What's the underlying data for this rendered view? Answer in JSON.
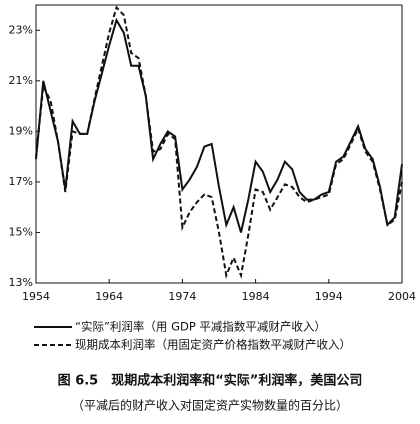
{
  "chart_data": {
    "type": "line",
    "caption": "（平减后的财产收入对固定资产实物数量的百分比）",
    "title": "图 6.5　现期成本利润率和“实际”利润率，美国公司",
    "x": [
      1954,
      1955,
      1956,
      1957,
      1958,
      1959,
      1960,
      1961,
      1962,
      1963,
      1964,
      1965,
      1966,
      1967,
      1968,
      1969,
      1970,
      1971,
      1972,
      1973,
      1974,
      1975,
      1976,
      1977,
      1978,
      1979,
      1980,
      1981,
      1982,
      1983,
      1984,
      1985,
      1986,
      1987,
      1988,
      1989,
      1990,
      1991,
      1992,
      1993,
      1994,
      1995,
      1996,
      1997,
      1998,
      1999,
      2000,
      2001,
      2002,
      2003,
      2004
    ],
    "series": [
      {
        "name": "“实际”利润率（用 GDP 平减指数平减财产收入）",
        "color": "#111111",
        "dash": "solid",
        "values": [
          17.9,
          21.0,
          19.8,
          18.6,
          16.7,
          19.4,
          18.9,
          18.9,
          20.2,
          21.3,
          22.4,
          23.4,
          22.9,
          21.6,
          21.6,
          20.4,
          17.9,
          18.5,
          19.0,
          18.8,
          16.7,
          17.1,
          17.6,
          18.4,
          18.5,
          16.8,
          15.3,
          16.0,
          15.0,
          16.3,
          17.8,
          17.4,
          16.6,
          17.1,
          17.8,
          17.5,
          16.6,
          16.3,
          16.3,
          16.5,
          16.6,
          17.8,
          18.0,
          18.6,
          19.2,
          18.3,
          17.9,
          16.8,
          15.3,
          15.6,
          17.7
        ]
      },
      {
        "name": "现期成本利润率（用固定资产价格指数平减财产收入）",
        "color": "#111111",
        "dash": "dashed",
        "values": [
          18.0,
          20.8,
          20.2,
          18.6,
          16.6,
          19.0,
          18.9,
          18.9,
          20.3,
          21.6,
          22.9,
          23.9,
          23.6,
          22.1,
          21.9,
          20.4,
          18.2,
          18.3,
          18.9,
          18.7,
          15.2,
          15.8,
          16.2,
          16.5,
          16.4,
          15.0,
          13.3,
          14.0,
          13.3,
          14.9,
          16.7,
          16.6,
          15.9,
          16.4,
          16.9,
          16.8,
          16.4,
          16.2,
          16.3,
          16.4,
          16.5,
          17.7,
          17.9,
          18.5,
          19.1,
          18.2,
          17.8,
          16.7,
          15.3,
          15.5,
          17.0
        ]
      }
    ],
    "xlim": [
      1954,
      2004
    ],
    "xticks": [
      1954,
      1964,
      1974,
      1984,
      1994,
      2004
    ],
    "ylim": [
      13,
      24
    ],
    "yticks": [
      {
        "value": 13,
        "label": "13%"
      },
      {
        "value": 15,
        "label": "15%"
      },
      {
        "value": 17,
        "label": "17%"
      },
      {
        "value": 19,
        "label": "19%"
      },
      {
        "value": 21,
        "label": "21%"
      },
      {
        "value": 23,
        "label": "23%"
      }
    ],
    "grid": false
  }
}
